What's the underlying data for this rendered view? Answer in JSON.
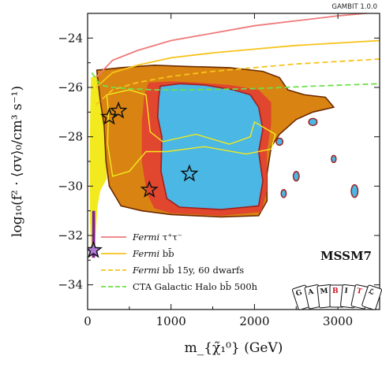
{
  "chart_data": {
    "type": "area",
    "xlabel": "m_{χ̃₁⁰} (GeV)",
    "ylabel": "log₁₀(f² · ⟨σv⟩₀/cm³ s⁻¹)",
    "xlim": [
      0,
      3500
    ],
    "ylim": [
      -35,
      -23
    ],
    "x_ticks": [
      0,
      1000,
      2000,
      3000
    ],
    "x_tick_labels": [
      "0",
      "1000",
      "2000",
      "3000"
    ],
    "y_ticks": [
      -34,
      -32,
      -30,
      -28,
      -26,
      -24
    ],
    "y_tick_labels": [
      "−34",
      "−32",
      "−30",
      "−28",
      "−26",
      "−24"
    ],
    "grid": false,
    "legend_position": "bottom-left",
    "series": [
      {
        "name": "Fermi τ⁺τ⁻",
        "style": "solid",
        "color": "#ef7a7a",
        "x": [
          100,
          300,
          600,
          1000,
          1500,
          2000,
          2500,
          3000,
          3500
        ],
        "y": [
          -25.6,
          -24.9,
          -24.5,
          -24.1,
          -23.8,
          -23.5,
          -23.3,
          -23.1,
          -22.95
        ]
      },
      {
        "name": "Fermi bb̄",
        "style": "solid",
        "color": "#f7c31b",
        "x": [
          100,
          300,
          600,
          1000,
          1500,
          2000,
          2500,
          3000,
          3500
        ],
        "y": [
          -26.0,
          -25.4,
          -25.1,
          -24.8,
          -24.6,
          -24.45,
          -24.3,
          -24.2,
          -24.1
        ]
      },
      {
        "name": "Fermi bb̄ 15y, 60 dwarfs",
        "style": "dashed",
        "color": "#f7c31b",
        "x": [
          100,
          300,
          600,
          1000,
          1500,
          2000,
          2500,
          3000,
          3500
        ],
        "y": [
          -26.7,
          -26.1,
          -25.8,
          -25.55,
          -25.35,
          -25.2,
          -25.05,
          -24.95,
          -24.85
        ]
      },
      {
        "name": "CTA Galactic Halo bb̄ 500h",
        "style": "dashed",
        "color": "#6ee04a",
        "x": [
          50,
          150,
          300,
          500,
          800,
          1200,
          2000,
          2700,
          3500
        ],
        "y": [
          -25.4,
          -25.9,
          -26.0,
          -26.05,
          -26.1,
          -26.1,
          -26.05,
          -25.95,
          -25.85
        ]
      }
    ],
    "regions": [
      {
        "name": "yellow",
        "color": "#f2ea1e"
      },
      {
        "name": "orange",
        "color": "#d98412"
      },
      {
        "name": "red",
        "color": "#e1462e"
      },
      {
        "name": "blue",
        "color": "#4ab7e4"
      },
      {
        "name": "purple",
        "color": "#7a1ea0"
      }
    ],
    "markers": [
      {
        "x": 1220,
        "y": -29.5
      },
      {
        "x": 260,
        "y": -27.2
      },
      {
        "x": 370,
        "y": -26.95
      },
      {
        "x": 740,
        "y": -30.15
      },
      {
        "x": 70,
        "y": -32.6
      }
    ],
    "annotations": [
      "MSSM7"
    ]
  },
  "labels": {
    "version": "GAMBIT 1.0.0",
    "model": "MSSM7",
    "legend": [
      {
        "italic": "Fermi",
        "rest": " τ⁺τ⁻"
      },
      {
        "italic": "Fermi",
        "rest": " bb̄"
      },
      {
        "italic": "Fermi",
        "rest": " bb̄ 15y, 60 dwarfs"
      },
      {
        "italic": "",
        "rest": "CTA Galactic Halo bb̄ 500h"
      }
    ],
    "logo_cards": [
      "G",
      "A",
      "M",
      "B",
      "I",
      "T",
      "ℒ"
    ]
  }
}
